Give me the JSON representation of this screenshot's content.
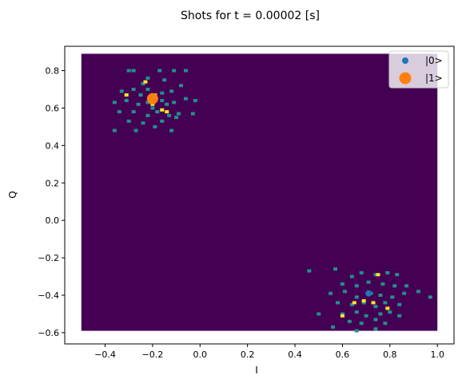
{
  "chart_data": {
    "type": "scatter",
    "title": "Shots for t = 0.00002 [s]",
    "xlabel": "I",
    "ylabel": "Q",
    "xlim": [
      -0.57,
      1.07
    ],
    "ylim": [
      -0.66,
      0.93
    ],
    "xticks": [
      -0.4,
      -0.2,
      0.0,
      0.2,
      0.4,
      0.6,
      0.8,
      1.0
    ],
    "xtick_labels": [
      "−0.4",
      "−0.2",
      "0.0",
      "0.2",
      "0.4",
      "0.6",
      "0.8",
      "1.0"
    ],
    "yticks": [
      -0.6,
      -0.4,
      -0.2,
      0.0,
      0.2,
      0.4,
      0.6,
      0.8
    ],
    "ytick_labels": [
      "−0.6",
      "−0.4",
      "−0.2",
      "0.0",
      "0.2",
      "0.4",
      "0.6",
      "0.8"
    ],
    "grid": false,
    "legend_position": "top-right",
    "background_hexbin": {
      "x_range": [
        -0.5,
        1.0
      ],
      "y_range": [
        -0.59,
        0.89
      ],
      "color": "#440154"
    },
    "colors": {
      "low": "#21918c",
      "high": "#fde725"
    },
    "clusters": [
      {
        "center": [
          -0.2,
          0.65
        ],
        "low_points": [
          [
            -0.28,
            0.8
          ],
          [
            -0.3,
            0.8
          ],
          [
            -0.24,
            0.73
          ],
          [
            -0.17,
            0.8
          ],
          [
            -0.11,
            0.8
          ],
          [
            -0.06,
            0.8
          ],
          [
            -0.33,
            0.69
          ],
          [
            -0.25,
            0.67
          ],
          [
            -0.22,
            0.7
          ],
          [
            -0.16,
            0.68
          ],
          [
            -0.12,
            0.69
          ],
          [
            -0.08,
            0.72
          ],
          [
            -0.36,
            0.63
          ],
          [
            -0.31,
            0.64
          ],
          [
            -0.26,
            0.62
          ],
          [
            -0.22,
            0.63
          ],
          [
            -0.16,
            0.64
          ],
          [
            -0.11,
            0.63
          ],
          [
            -0.06,
            0.65
          ],
          [
            -0.02,
            0.64
          ],
          [
            -0.34,
            0.58
          ],
          [
            -0.28,
            0.58
          ],
          [
            -0.22,
            0.56
          ],
          [
            -0.18,
            0.58
          ],
          [
            -0.13,
            0.56
          ],
          [
            -0.09,
            0.57
          ],
          [
            -0.3,
            0.53
          ],
          [
            -0.24,
            0.52
          ],
          [
            -0.16,
            0.53
          ],
          [
            -0.1,
            0.55
          ],
          [
            -0.27,
            0.48
          ],
          [
            -0.19,
            0.5
          ],
          [
            -0.12,
            0.48
          ],
          [
            -0.36,
            0.48
          ],
          [
            -0.22,
            0.76
          ],
          [
            -0.15,
            0.75
          ],
          [
            -0.28,
            0.7
          ],
          [
            -0.03,
            0.57
          ],
          [
            -0.2,
            0.6
          ],
          [
            -0.14,
            0.62
          ]
        ],
        "high_points": [
          [
            -0.23,
            0.74
          ],
          [
            -0.31,
            0.67
          ],
          [
            -0.2,
            0.62
          ],
          [
            -0.16,
            0.59
          ],
          [
            -0.14,
            0.58
          ],
          [
            -0.19,
            0.67
          ]
        ]
      },
      {
        "center": [
          0.71,
          -0.39
        ],
        "low_points": [
          [
            0.57,
            -0.26
          ],
          [
            0.64,
            -0.3
          ],
          [
            0.68,
            -0.28
          ],
          [
            0.74,
            -0.29
          ],
          [
            0.79,
            -0.28
          ],
          [
            0.83,
            -0.29
          ],
          [
            0.6,
            -0.34
          ],
          [
            0.66,
            -0.35
          ],
          [
            0.71,
            -0.33
          ],
          [
            0.77,
            -0.34
          ],
          [
            0.82,
            -0.35
          ],
          [
            0.87,
            -0.35
          ],
          [
            0.55,
            -0.39
          ],
          [
            0.61,
            -0.38
          ],
          [
            0.66,
            -0.41
          ],
          [
            0.72,
            -0.39
          ],
          [
            0.76,
            -0.4
          ],
          [
            0.81,
            -0.41
          ],
          [
            0.86,
            -0.39
          ],
          [
            0.92,
            -0.38
          ],
          [
            0.58,
            -0.44
          ],
          [
            0.64,
            -0.45
          ],
          [
            0.69,
            -0.44
          ],
          [
            0.74,
            -0.46
          ],
          [
            0.78,
            -0.44
          ],
          [
            0.84,
            -0.45
          ],
          [
            0.6,
            -0.5
          ],
          [
            0.66,
            -0.49
          ],
          [
            0.7,
            -0.51
          ],
          [
            0.76,
            -0.5
          ],
          [
            0.8,
            -0.49
          ],
          [
            0.63,
            -0.54
          ],
          [
            0.68,
            -0.55
          ],
          [
            0.74,
            -0.53
          ],
          [
            0.78,
            -0.55
          ],
          [
            0.66,
            -0.59
          ],
          [
            0.74,
            -0.58
          ],
          [
            0.46,
            -0.27
          ],
          [
            0.5,
            -0.5
          ],
          [
            0.56,
            -0.57
          ],
          [
            0.97,
            -0.41
          ],
          [
            0.84,
            -0.51
          ]
        ],
        "high_points": [
          [
            0.6,
            -0.51
          ],
          [
            0.65,
            -0.44
          ],
          [
            0.73,
            -0.44
          ],
          [
            0.75,
            -0.29
          ],
          [
            0.79,
            -0.47
          ],
          [
            0.69,
            -0.43
          ]
        ]
      }
    ],
    "series": [
      {
        "name": "|0>",
        "x": [
          0.71
        ],
        "y": [
          -0.39
        ],
        "color": "#1f77b4",
        "marker_size": 6
      },
      {
        "name": "|1>",
        "x": [
          -0.2
        ],
        "y": [
          0.65
        ],
        "color": "#ff7f0e",
        "marker_size": 12
      }
    ]
  }
}
